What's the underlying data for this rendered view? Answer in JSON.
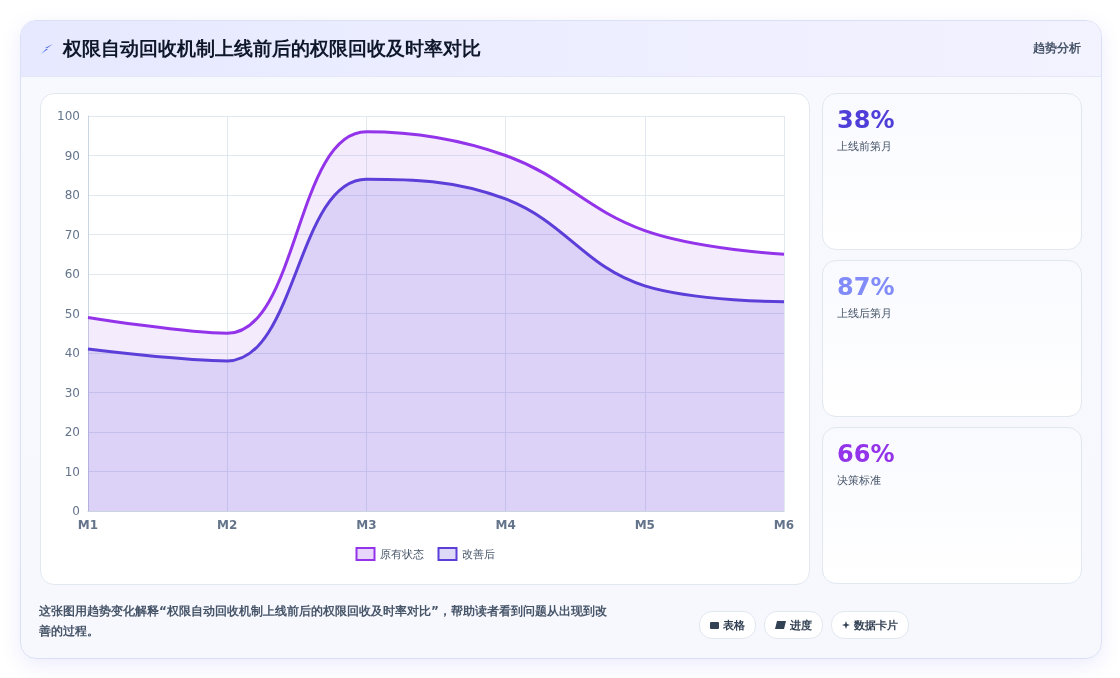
{
  "chart_data": {
    "type": "area",
    "title": "权限自动回收机制上线前后的权限回收及时率对比",
    "subtitle": "趋势分析",
    "categories": [
      "M1",
      "M2",
      "M3",
      "M4",
      "M5",
      "M6"
    ],
    "series": [
      {
        "name": "原有状态",
        "color": "#9333ea",
        "values": [
          49,
          45,
          96,
          90,
          71,
          65
        ]
      },
      {
        "name": "改善后",
        "color": "#5b3fd8",
        "values": [
          41,
          38,
          84,
          79,
          57,
          53
        ]
      }
    ],
    "ylim": [
      0,
      100
    ],
    "yticks": [
      0,
      10,
      20,
      30,
      40,
      50,
      60,
      70,
      80,
      90,
      100
    ],
    "grid": true,
    "legend": "bottom",
    "marker": "none",
    "annotations": [
      "38%",
      "上线前第月",
      "87%",
      "上线后第月",
      "66%",
      "决策标准",
      "这张图用趋势变化解释“权限自动回收机制上线前后的权限回收及时率对比”，帮助读者看到问题从出现到改善的过程。",
      "表格",
      "进度",
      "数据卡片"
    ]
  }
}
